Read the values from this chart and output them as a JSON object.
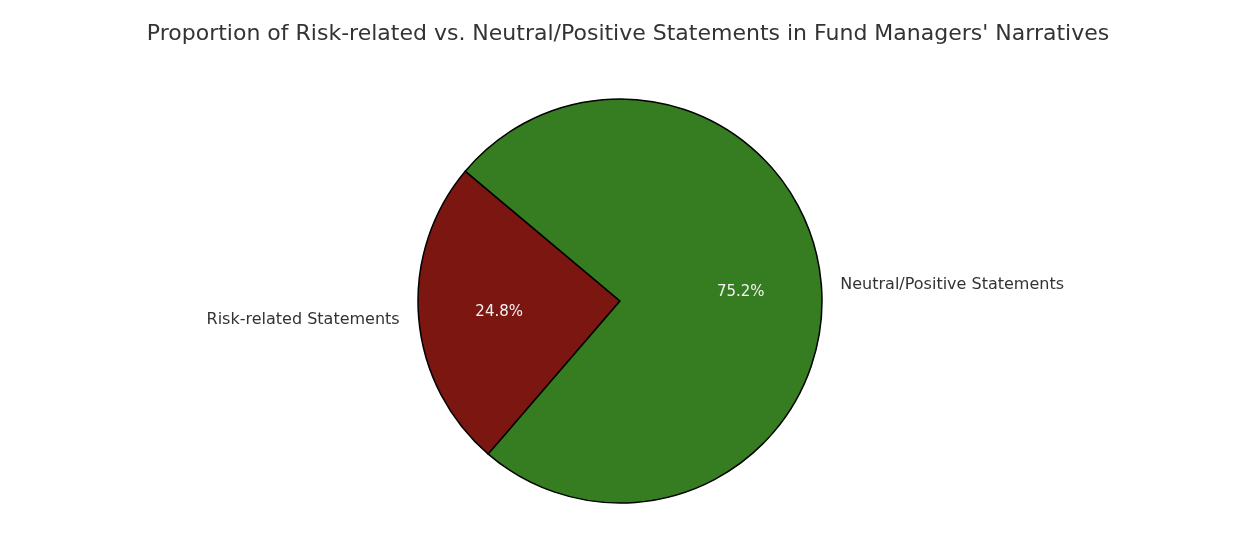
{
  "chart_data": {
    "type": "pie",
    "title": "Proportion of Risk-related vs. Neutral/Positive Statements in Fund Managers' Narratives",
    "categories": [
      "Risk-related Statements",
      "Neutral/Positive Statements"
    ],
    "values": [
      24.8,
      75.2
    ],
    "colors": [
      "#7b1610",
      "#367c21"
    ],
    "value_labels": [
      "24.8%",
      "75.2%"
    ],
    "legend": false
  }
}
